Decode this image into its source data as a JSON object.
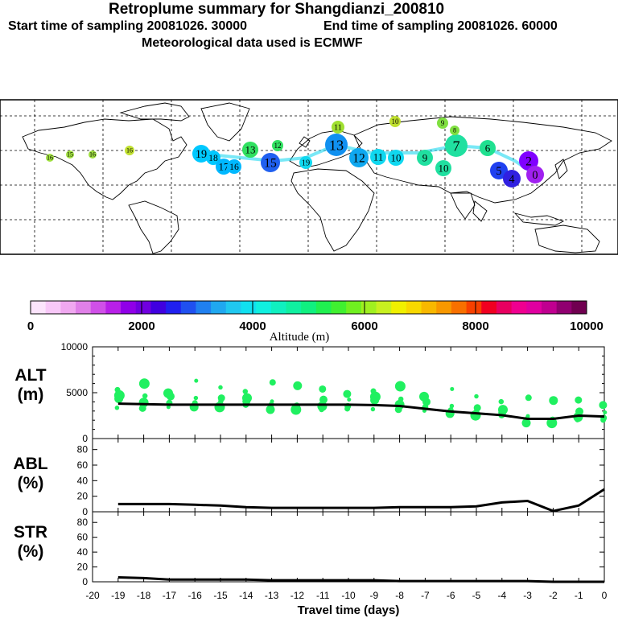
{
  "header": {
    "title": "Retroplume summary for Shangdianzi_200810",
    "start_label": "Start time of sampling 20081026. 30000",
    "end_label": "End time of sampling 20081026. 60000",
    "met_label": "Meteorological data used is ECMWF"
  },
  "map": {
    "plume_labels": [
      {
        "text": "16",
        "color": "#a0e040"
      },
      {
        "text": "15",
        "color": "#a0e040"
      },
      {
        "text": "16",
        "color": "#a0e040"
      },
      {
        "text": "16",
        "color": "#c0e030"
      },
      {
        "text": "19",
        "color": "#00c8ff"
      },
      {
        "text": "18",
        "color": "#00c8ff"
      },
      {
        "text": "17",
        "color": "#00b8ff"
      },
      {
        "text": "16",
        "color": "#00b8ff"
      },
      {
        "text": "13",
        "color": "#30e060"
      },
      {
        "text": "15",
        "color": "#2060f0"
      },
      {
        "text": "19",
        "color": "#10d8f0"
      },
      {
        "text": "11",
        "color": "#a0e030"
      },
      {
        "text": "12",
        "color": "#30e060"
      },
      {
        "text": "10",
        "color": "#c0e030"
      },
      {
        "text": "13",
        "color": "#1090f0"
      },
      {
        "text": "12",
        "color": "#10a8f0"
      },
      {
        "text": "11",
        "color": "#10d8f0"
      },
      {
        "text": "10",
        "color": "#10d8f0"
      },
      {
        "text": "9",
        "color": "#20e0a0"
      },
      {
        "text": "10",
        "color": "#20e0a0"
      },
      {
        "text": "7",
        "color": "#20e0a0"
      },
      {
        "text": "6",
        "color": "#20e090"
      },
      {
        "text": "9",
        "color": "#80e040"
      },
      {
        "text": "8",
        "color": "#80e040"
      },
      {
        "text": "5",
        "color": "#2040f0"
      },
      {
        "text": "4",
        "color": "#3020e0"
      },
      {
        "text": "2",
        "color": "#8000ff"
      },
      {
        "text": "0",
        "color": "#a020f0"
      }
    ]
  },
  "colorbar": {
    "tick_labels": [
      "0",
      "2000",
      "4000",
      "6000",
      "8000",
      "10000"
    ],
    "label": "Altitude (m)",
    "colors": [
      "#fce4fc",
      "#f8c8f8",
      "#f0a8f0",
      "#e080e8",
      "#d050e8",
      "#b820e8",
      "#9000e8",
      "#7000e0",
      "#4000e0",
      "#2020f0",
      "#2050f0",
      "#2080f0",
      "#20a8f0",
      "#20c8f0",
      "#10e0f0",
      "#10f0e0",
      "#10f0c0",
      "#10f0a0",
      "#10f080",
      "#20f050",
      "#40f030",
      "#70f020",
      "#a0f020",
      "#c8f020",
      "#f0f000",
      "#f8d800",
      "#f8b800",
      "#f89800",
      "#f87000",
      "#f84000",
      "#f00020",
      "#e80060",
      "#f00090",
      "#e000a0",
      "#c00090",
      "#900070",
      "#700050"
    ]
  },
  "chart_data": [
    {
      "type": "scatter",
      "title": "ALT (m)",
      "ylabel_line1": "ALT",
      "ylabel_line2": "(m)",
      "ylim": [
        0,
        10000
      ],
      "yticks": [
        "0",
        "5000",
        "10000"
      ],
      "x": [
        -19,
        -18,
        -17,
        -16,
        -15,
        -14,
        -13,
        -12,
        -11,
        -10,
        -9,
        -8,
        -7,
        -6,
        -5,
        -4,
        -3,
        -2,
        -1,
        0
      ],
      "mean_altitude": [
        3800,
        3750,
        3700,
        3700,
        3700,
        3700,
        3700,
        3700,
        3700,
        3700,
        3650,
        3550,
        3250,
        2950,
        2750,
        2550,
        2150,
        2150,
        2500,
        2400
      ]
    },
    {
      "type": "line",
      "title": "ABL (%)",
      "ylabel_line1": "ABL",
      "ylabel_line2": "(%)",
      "ylim": [
        0,
        90
      ],
      "yticks": [
        "0",
        "20",
        "40",
        "60",
        "80"
      ],
      "x": [
        -19,
        -18,
        -17,
        -16,
        -15,
        -14,
        -13,
        -12,
        -11,
        -10,
        -9,
        -8,
        -7,
        -6,
        -5,
        -4,
        -3,
        -2,
        -1,
        0
      ],
      "values": [
        10,
        10,
        10,
        9,
        8,
        6,
        5,
        5,
        5,
        5,
        5,
        6,
        6,
        6,
        7,
        12,
        14,
        1,
        8,
        29
      ]
    },
    {
      "type": "line",
      "title": "STR (%)",
      "ylabel_line1": "STR",
      "ylabel_line2": "(%)",
      "ylim": [
        0,
        90
      ],
      "yticks": [
        "0",
        "20",
        "40",
        "60",
        "80"
      ],
      "x": [
        -19,
        -18,
        -17,
        -16,
        -15,
        -14,
        -13,
        -12,
        -11,
        -10,
        -9,
        -8,
        -7,
        -6,
        -5,
        -4,
        -3,
        -2,
        -1,
        0
      ],
      "values": [
        6,
        5,
        3,
        3,
        3,
        3,
        2,
        2,
        2,
        2,
        2,
        1,
        1,
        1,
        1,
        1,
        1,
        0,
        0,
        0
      ]
    }
  ],
  "xaxis": {
    "label": "Travel time (days)",
    "ticks": [
      "-20",
      "-19",
      "-18",
      "-17",
      "-16",
      "-15",
      "-14",
      "-13",
      "-12",
      "-11",
      "-10",
      "-9",
      "-8",
      "-7",
      "-6",
      "-5",
      "-4",
      "-3",
      "-2",
      "-1",
      "0"
    ]
  }
}
